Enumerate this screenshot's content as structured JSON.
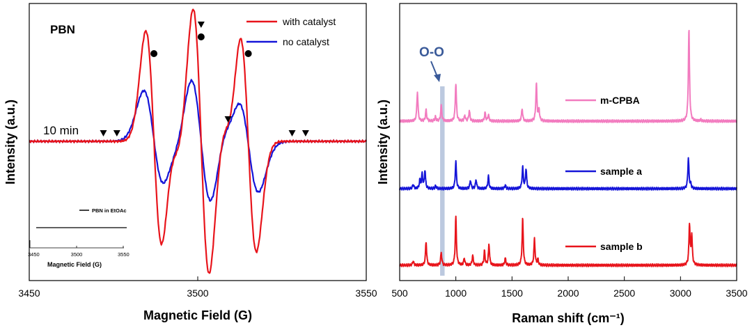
{
  "chart_data": [
    {
      "type": "line",
      "panel_label": "PBN",
      "xlabel": "Magnetic Field (G)",
      "ylabel": "Intensity (a.u.)",
      "xlim": [
        3450,
        3550
      ],
      "ylim": [
        -1.0,
        0.75
      ],
      "x_ticks": [
        3450,
        3500,
        3550
      ],
      "grid": false,
      "legend_position": "top-right",
      "annotation_time": "10 min",
      "series": [
        {
          "name": "with catalyst",
          "color": "#e8141b",
          "baseline": 0.0,
          "peaks": [
            {
              "center": 3487,
              "amplitude": 0.48,
              "width": 2.4
            },
            {
              "center": 3501,
              "amplitude": 0.58,
              "width": 2.4
            },
            {
              "center": 3515,
              "amplitude": 0.48,
              "width": 2.4
            },
            {
              "center": 3493,
              "amplitude": 0.06,
              "width": 2.0
            },
            {
              "center": 3509,
              "amplitude": 0.06,
              "width": 2.0
            }
          ],
          "points": [
            [
              3450,
              0.0
            ],
            [
              3480,
              0.01
            ],
            [
              3487,
              0.48
            ],
            [
              3490,
              -0.45
            ],
            [
              3493,
              -0.12
            ],
            [
              3501,
              0.58
            ],
            [
              3504,
              -0.58
            ],
            [
              3509,
              0.06
            ],
            [
              3515,
              0.48
            ],
            [
              3518,
              -0.45
            ],
            [
              3530,
              0.0
            ],
            [
              3550,
              0.0
            ]
          ]
        },
        {
          "name": "no catalyst",
          "color": "#1414d8",
          "baseline": 0.0,
          "peaks": [
            {
              "center": 3487,
              "amplitude": 0.22,
              "width": 3.0
            },
            {
              "center": 3501,
              "amplitude": 0.28,
              "width": 3.0
            },
            {
              "center": 3515,
              "amplitude": 0.22,
              "width": 3.0
            },
            {
              "center": 3493,
              "amplitude": 0.04,
              "width": 2.4
            },
            {
              "center": 3509,
              "amplitude": 0.06,
              "width": 2.4
            }
          ],
          "points": [
            [
              3450,
              0.0
            ],
            [
              3480,
              0.01
            ],
            [
              3487,
              0.22
            ],
            [
              3490,
              -0.22
            ],
            [
              3501,
              0.28
            ],
            [
              3504,
              -0.28
            ],
            [
              3515,
              0.22
            ],
            [
              3518,
              -0.22
            ],
            [
              3530,
              0.0
            ],
            [
              3550,
              0.0
            ]
          ]
        }
      ],
      "annotations": [
        {
          "symbol": "circle",
          "x": 3487,
          "y": 0.63
        },
        {
          "symbol": "circle",
          "x": 3501,
          "y": 0.75
        },
        {
          "symbol": "circle",
          "x": 3515,
          "y": 0.63
        },
        {
          "symbol": "triangle",
          "x": 3501,
          "y": 0.84
        },
        {
          "symbol": "triangle",
          "x": 3509,
          "y": 0.16
        },
        {
          "symbol": "triangle",
          "x": 3472,
          "y": 0.06
        },
        {
          "symbol": "triangle",
          "x": 3476,
          "y": 0.06
        },
        {
          "symbol": "triangle",
          "x": 3528,
          "y": 0.06
        },
        {
          "symbol": "triangle",
          "x": 3532,
          "y": 0.06
        }
      ],
      "inset": {
        "series_name": "PBN in EtOAc",
        "xlabel": "Magnetic Field (G)",
        "x_ticks": [
          3450,
          3500,
          3550
        ],
        "xlim": [
          3450,
          3550
        ],
        "color": "#000000"
      }
    },
    {
      "type": "line",
      "xlabel": "Raman shift (cm⁻¹)",
      "ylabel": "Intensity (a.u.)",
      "xlim": [
        500,
        3500
      ],
      "x_ticks": [
        500,
        1000,
        1500,
        2000,
        2500,
        3000,
        3500
      ],
      "grid": false,
      "legend_position": "inline right of traces",
      "highlight_band": {
        "label": "O-O",
        "x_range": [
          860,
          900
        ],
        "color": "#b5c3dc"
      },
      "series": [
        {
          "name": "m-CPBA",
          "color": "#f27bbf",
          "offset": 2.0,
          "peaks": [
            {
              "center": 658,
              "height": 0.42
            },
            {
              "center": 735,
              "height": 0.16
            },
            {
              "center": 818,
              "height": 0.06
            },
            {
              "center": 870,
              "height": 0.22
            },
            {
              "center": 1000,
              "height": 0.54
            },
            {
              "center": 1080,
              "height": 0.08
            },
            {
              "center": 1120,
              "height": 0.15
            },
            {
              "center": 1260,
              "height": 0.12
            },
            {
              "center": 1290,
              "height": 0.09
            },
            {
              "center": 1590,
              "height": 0.18
            },
            {
              "center": 1717,
              "height": 0.54
            },
            {
              "center": 1740,
              "height": 0.16
            },
            {
              "center": 3075,
              "height": 1.32
            },
            {
              "center": 3180,
              "height": 0.02
            }
          ]
        },
        {
          "name": "sample a",
          "color": "#1414d8",
          "offset": 1.0,
          "peaks": [
            {
              "center": 620,
              "height": 0.06
            },
            {
              "center": 680,
              "height": 0.12
            },
            {
              "center": 700,
              "height": 0.2
            },
            {
              "center": 725,
              "height": 0.26
            },
            {
              "center": 820,
              "height": 0.04
            },
            {
              "center": 1000,
              "height": 0.39
            },
            {
              "center": 1130,
              "height": 0.12
            },
            {
              "center": 1180,
              "height": 0.13
            },
            {
              "center": 1290,
              "height": 0.18
            },
            {
              "center": 1440,
              "height": 0.05
            },
            {
              "center": 1595,
              "height": 0.31
            },
            {
              "center": 1625,
              "height": 0.28
            },
            {
              "center": 3070,
              "height": 0.44
            },
            {
              "center": 3090,
              "height": 0.06
            }
          ]
        },
        {
          "name": "sample b",
          "color": "#e8141b",
          "offset": 0.0,
          "peaks": [
            {
              "center": 620,
              "height": 0.06
            },
            {
              "center": 735,
              "height": 0.34
            },
            {
              "center": 870,
              "height": 0.18
            },
            {
              "center": 1000,
              "height": 0.69
            },
            {
              "center": 1075,
              "height": 0.1
            },
            {
              "center": 1150,
              "height": 0.14
            },
            {
              "center": 1255,
              "height": 0.2
            },
            {
              "center": 1295,
              "height": 0.3
            },
            {
              "center": 1440,
              "height": 0.1
            },
            {
              "center": 1595,
              "height": 0.67
            },
            {
              "center": 1700,
              "height": 0.38
            },
            {
              "center": 1730,
              "height": 0.08
            },
            {
              "center": 3080,
              "height": 0.58
            },
            {
              "center": 3100,
              "height": 0.42
            }
          ]
        }
      ]
    }
  ]
}
